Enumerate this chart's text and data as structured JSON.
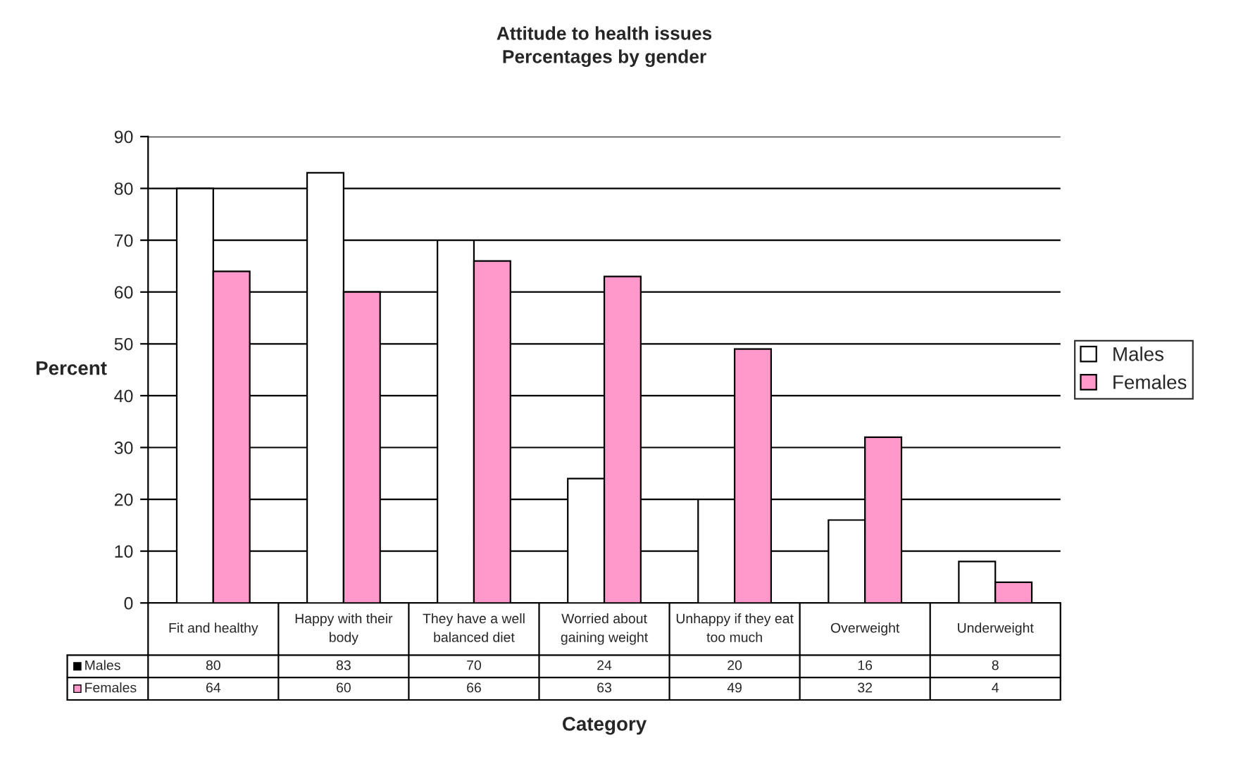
{
  "chart_data": {
    "type": "bar",
    "title": "Attitude to health issues",
    "subtitle": "Percentages by gender",
    "xlabel": "Category",
    "ylabel": "Percent",
    "categories": [
      "Fit and healthy",
      "Happy with their body",
      "They have a well balanced diet",
      "Worried about gaining weight",
      "Unhappy if they eat too much",
      "Overweight",
      "Underweight"
    ],
    "series": [
      {
        "name": "Males",
        "color": "#ffffff",
        "values": [
          80,
          83,
          70,
          24,
          20,
          16,
          8
        ]
      },
      {
        "name": "Females",
        "color": "#ff99cc",
        "values": [
          64,
          60,
          66,
          63,
          49,
          32,
          4
        ]
      }
    ],
    "ylim": [
      0,
      90
    ],
    "yticks": [
      0,
      10,
      20,
      30,
      40,
      50,
      60,
      70,
      80,
      90
    ],
    "grid": "y",
    "legend": "right",
    "data_labels": true
  }
}
